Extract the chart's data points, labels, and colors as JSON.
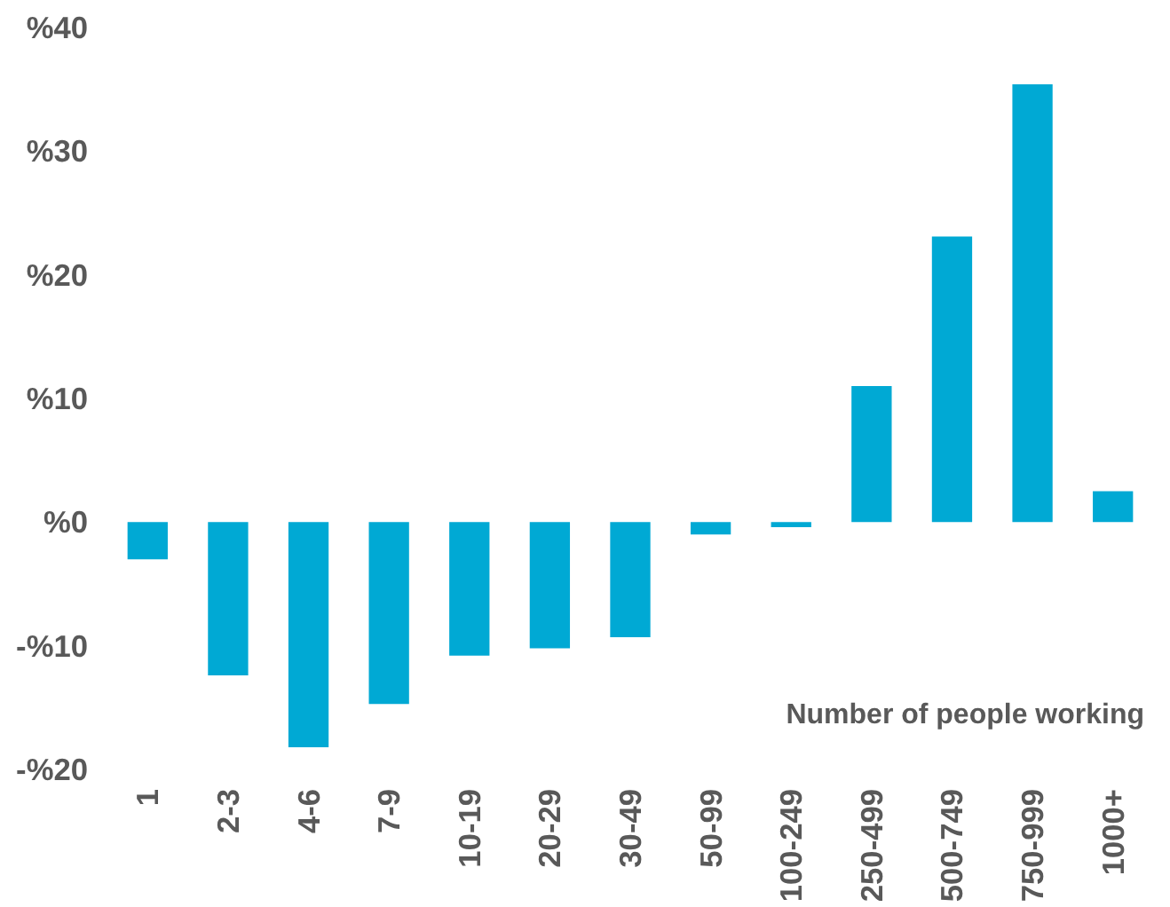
{
  "chart_data": {
    "type": "bar",
    "xlabel": "Number of people working",
    "categories": [
      "1",
      "2-3",
      "4-6",
      "7-9",
      "10-19",
      "20-29",
      "30-49",
      "50-99",
      "100-249",
      "250-499",
      "500-749",
      "750-999",
      "1000+"
    ],
    "values": [
      -3.0,
      -12.4,
      -18.2,
      -14.7,
      -10.8,
      -10.2,
      -9.3,
      -1.0,
      -0.4,
      11.0,
      23.1,
      35.4,
      2.5
    ],
    "color": "#00a9d4",
    "ylim": [
      -20,
      40
    ],
    "yticks": [
      {
        "value": -20,
        "label": "-%20"
      },
      {
        "value": -10,
        "label": "-%10"
      },
      {
        "value": 0,
        "label": "%0"
      },
      {
        "value": 10,
        "label": "%10"
      },
      {
        "value": 20,
        "label": "%20"
      },
      {
        "value": 30,
        "label": "%30"
      },
      {
        "value": 40,
        "label": "%40"
      }
    ],
    "grid": false
  }
}
